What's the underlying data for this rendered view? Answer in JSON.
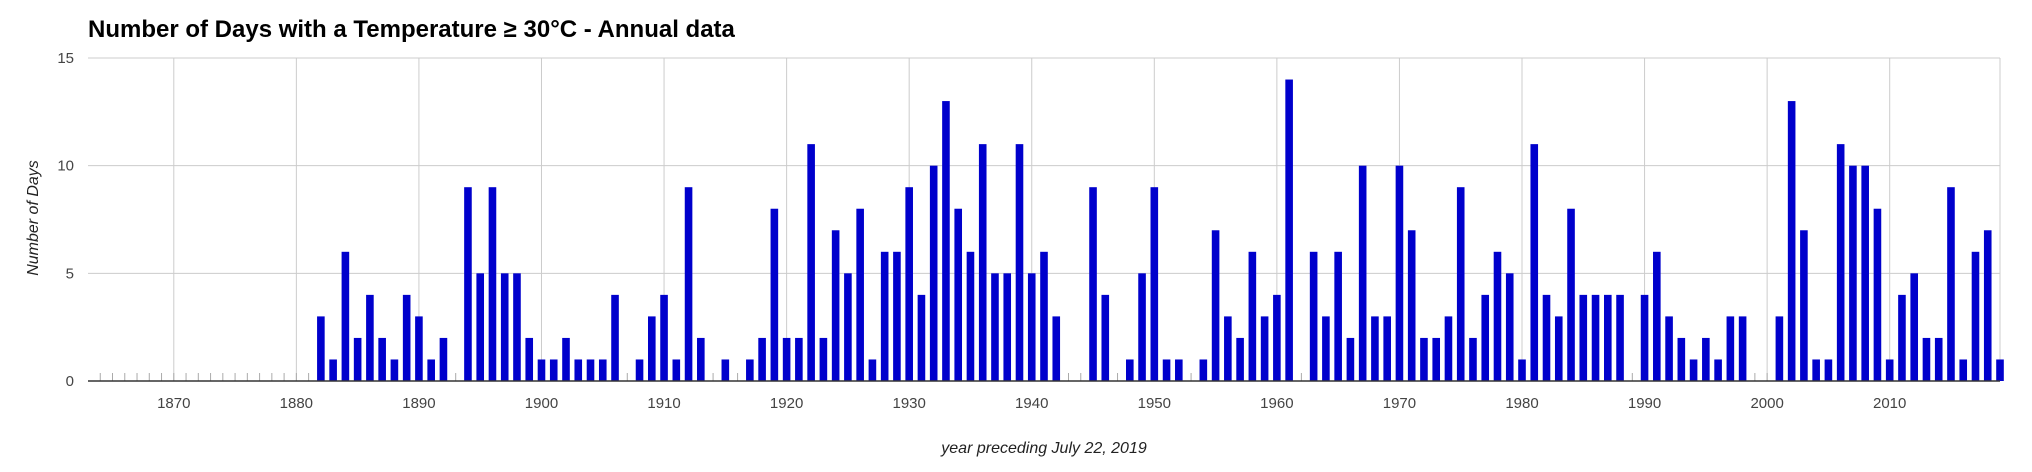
{
  "chart_data": {
    "type": "bar",
    "title": "Number of Days with a Temperature ≥ 30°C - Annual data",
    "xlabel": "year preceding July 22, 2019",
    "ylabel": "Number of Days",
    "xlim": [
      1863,
      2019
    ],
    "ylim": [
      0,
      15
    ],
    "y_ticks": [
      0,
      5,
      10,
      15
    ],
    "x_ticks": [
      1870,
      1880,
      1890,
      1900,
      1910,
      1920,
      1930,
      1940,
      1950,
      1960,
      1970,
      1980,
      1990,
      2000,
      2010
    ],
    "grid": true,
    "legend": "none",
    "bar_color": "#0000cc",
    "series": [
      {
        "x": [
          1882,
          1883,
          1884,
          1885,
          1886,
          1887,
          1888,
          1889,
          1890,
          1891,
          1892,
          1894,
          1895,
          1896,
          1897,
          1898,
          1899,
          1900,
          1901,
          1902,
          1903,
          1904,
          1905,
          1906,
          1908,
          1909,
          1910,
          1911,
          1912,
          1913,
          1915,
          1917,
          1918,
          1919,
          1920,
          1921,
          1922,
          1923,
          1924,
          1925,
          1926,
          1927,
          1928,
          1929,
          1930,
          1931,
          1932,
          1933,
          1934,
          1935,
          1936,
          1937,
          1938,
          1939,
          1940,
          1941,
          1942,
          1945,
          1946,
          1948,
          1949,
          1950,
          1951,
          1952,
          1954,
          1955,
          1956,
          1957,
          1958,
          1959,
          1960,
          1961,
          1963,
          1964,
          1965,
          1966,
          1967,
          1968,
          1969,
          1970,
          1971,
          1972,
          1973,
          1974,
          1975,
          1976,
          1977,
          1978,
          1979,
          1980,
          1981,
          1982,
          1983,
          1984,
          1985,
          1986,
          1987,
          1988,
          1990,
          1991,
          1992,
          1993,
          1994,
          1995,
          1996,
          1997,
          1998,
          2001,
          2002,
          2003,
          2004,
          2005,
          2006,
          2007,
          2008,
          2009,
          2010,
          2011,
          2012,
          2013,
          2014,
          2015,
          2016,
          2017,
          2018,
          2019
        ],
        "values": [
          3,
          1,
          6,
          2,
          4,
          2,
          1,
          4,
          3,
          1,
          2,
          9,
          5,
          9,
          5,
          5,
          2,
          1,
          1,
          2,
          1,
          1,
          1,
          4,
          1,
          3,
          4,
          1,
          9,
          2,
          1,
          1,
          2,
          8,
          2,
          2,
          11,
          2,
          7,
          5,
          8,
          1,
          6,
          6,
          9,
          4,
          10,
          13,
          8,
          6,
          11,
          5,
          5,
          11,
          5,
          6,
          3,
          9,
          4,
          1,
          5,
          9,
          1,
          1,
          1,
          7,
          3,
          2,
          6,
          3,
          4,
          14,
          6,
          3,
          6,
          2,
          10,
          3,
          3,
          10,
          7,
          2,
          2,
          3,
          9,
          2,
          4,
          6,
          5,
          1,
          11,
          4,
          3,
          8,
          4,
          4,
          4,
          4,
          4,
          6,
          3,
          2,
          1,
          2,
          1,
          3,
          3,
          3,
          13,
          7,
          1,
          1,
          11,
          10,
          10,
          8,
          1,
          4,
          5,
          2,
          2,
          9,
          1,
          6,
          7,
          1
        ]
      }
    ]
  }
}
